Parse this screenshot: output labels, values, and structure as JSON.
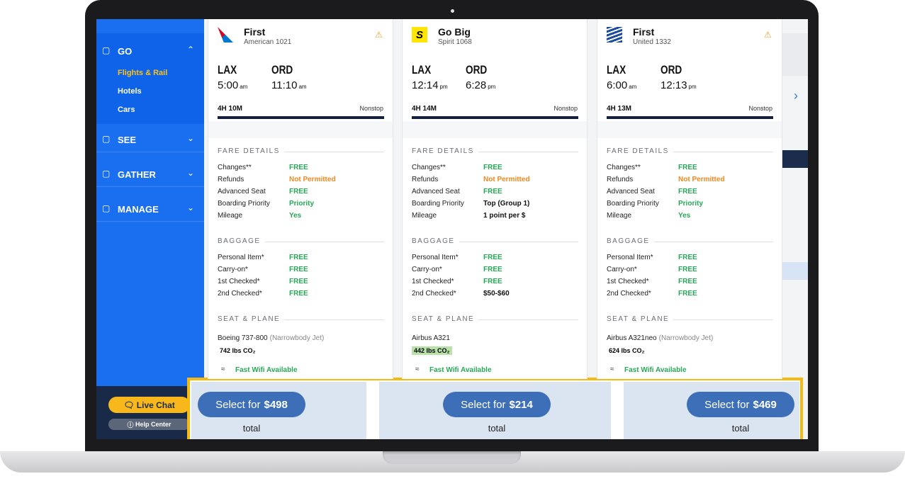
{
  "sidebar": {
    "sections": [
      {
        "label": "GO",
        "items": [
          "Flights & Rail",
          "Hotels",
          "Cars"
        ]
      },
      {
        "label": "SEE"
      },
      {
        "label": "GATHER"
      },
      {
        "label": "MANAGE"
      }
    ],
    "live_chat": "Live Chat",
    "help_center": "Help Center"
  },
  "fare_title": "FARE DETAILS",
  "fare_labels": [
    "Changes**",
    "Refunds",
    "Advanced Seat",
    "Boarding Priority",
    "Mileage"
  ],
  "baggage_title": "BAGGAGE",
  "baggage_labels": [
    "Personal Item*",
    "Carry-on*",
    "1st Checked*",
    "2nd Checked*"
  ],
  "seat_title": "SEAT & PLANE",
  "cards": [
    {
      "cabin": "First",
      "airline": "American 1021",
      "from": "LAX",
      "to": "ORD",
      "dep_time": "5:00",
      "dep_ampm": "am",
      "arr_time": "11:10",
      "arr_ampm": "am",
      "duration": "4H 10M",
      "stops": "Nonstop",
      "fare_values": [
        "FREE",
        "Not Permitted",
        "FREE",
        "Priority",
        "Yes"
      ],
      "baggage_values": [
        "FREE",
        "FREE",
        "FREE",
        "FREE"
      ],
      "plane": "Boeing 737-800",
      "plane_type": "(Narrowbody Jet)",
      "co2": "742 lbs CO₂",
      "wifi": "Fast Wifi Available",
      "select_label": "Select for",
      "price": "$498",
      "total": "total"
    },
    {
      "cabin": "Go Big",
      "airline": "Spirit 1068",
      "logo_mark": "S",
      "from": "LAX",
      "to": "ORD",
      "dep_time": "12:14",
      "dep_ampm": "pm",
      "arr_time": "6:28",
      "arr_ampm": "pm",
      "duration": "4H 14M",
      "stops": "Nonstop",
      "fare_values": [
        "FREE",
        "Not Permitted",
        "FREE",
        "Top (Group 1)",
        "1 point per $"
      ],
      "baggage_values": [
        "FREE",
        "FREE",
        "FREE",
        "$50-$60"
      ],
      "plane": "Airbus A321",
      "co2": "442 lbs CO₂",
      "wifi": "Fast Wifi Available",
      "select_label": "Select for",
      "price": "$214",
      "total": "total"
    },
    {
      "cabin": "First",
      "airline": "United 1332",
      "from": "LAX",
      "to": "ORD",
      "dep_time": "6:00",
      "dep_ampm": "am",
      "arr_time": "12:13",
      "arr_ampm": "pm",
      "duration": "4H 13M",
      "stops": "Nonstop",
      "fare_values": [
        "FREE",
        "Not Permitted",
        "FREE",
        "Priority",
        "Yes"
      ],
      "baggage_values": [
        "FREE",
        "FREE",
        "FREE",
        "FREE"
      ],
      "plane": "Airbus A321neo",
      "plane_type": "(Narrowbody Jet)",
      "co2": "624 lbs CO₂",
      "wifi": "Fast Wifi Available",
      "select_label": "Select for",
      "price": "$469",
      "total": "total"
    }
  ]
}
